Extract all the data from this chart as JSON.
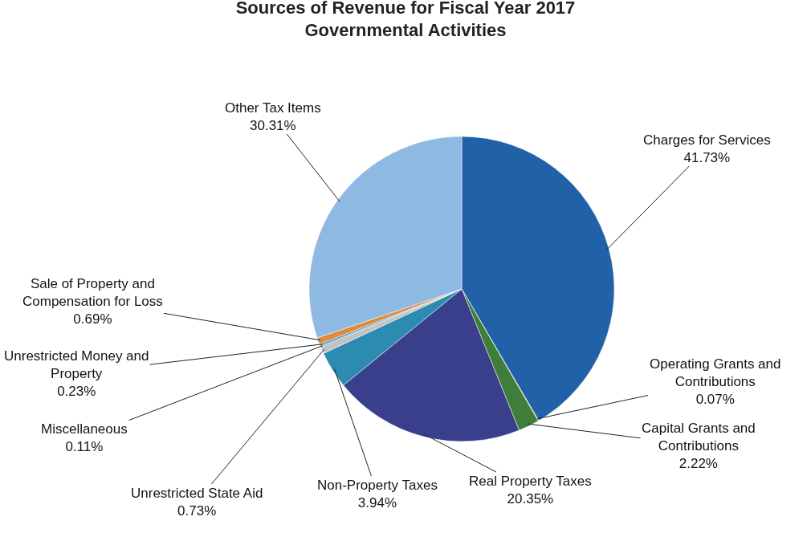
{
  "chart_data": {
    "type": "pie",
    "title": "Sources of Revenue for Fiscal Year 2017",
    "subtitle": "Governmental Activities",
    "categories": [
      "Charges for Services",
      "Operating Grants and Contributions",
      "Capital Grants and Contributions",
      "Real Property Taxes",
      "Non-Property Taxes",
      "Unrestricted State Aid",
      "Miscellaneous",
      "Unrestricted Money and Property",
      "Sale of Property and Compensation for Loss",
      "Other Tax Items"
    ],
    "values": [
      41.73,
      0.07,
      2.22,
      20.35,
      3.94,
      0.73,
      0.11,
      0.23,
      0.69,
      30.31
    ],
    "value_labels": [
      "41.73%",
      "0.07%",
      "2.22%",
      "20.35%",
      "3.94%",
      "0.73%",
      "0.11%",
      "0.23%",
      "0.69%",
      "30.31%"
    ],
    "colors": [
      "#2061a8",
      "#7ab648",
      "#3f7d3a",
      "#3a3f8c",
      "#2b8bb0",
      "#c2c2c2",
      "#7f7f7f",
      "#4a9bd0",
      "#e08a3c",
      "#8db9e2"
    ],
    "legend": false
  }
}
